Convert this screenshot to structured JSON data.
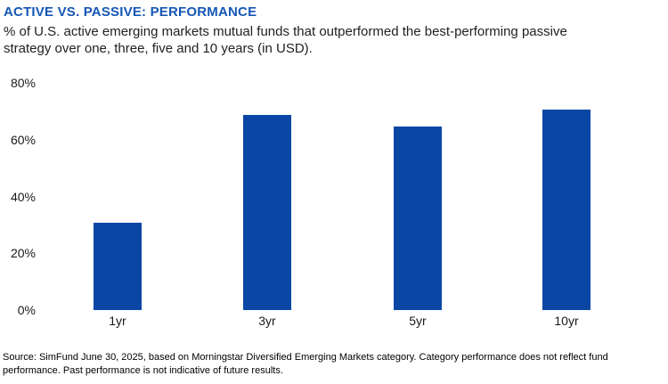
{
  "header": {
    "title": "ACTIVE VS. PASSIVE: PERFORMANCE",
    "subtitle_line1": "% of U.S. active emerging markets mutual funds that outperformed the best-performing passive",
    "subtitle_line2": "strategy over one, three, five and 10 years (in USD).",
    "title_color": "#1557B5"
  },
  "chart_data": {
    "type": "bar",
    "title": "ACTIVE VS. PASSIVE: PERFORMANCE",
    "categories": [
      "1yr",
      "3yr",
      "5yr",
      "10yr"
    ],
    "values": [
      31,
      69,
      65,
      71
    ],
    "xlabel": "",
    "ylabel": "",
    "ylim": [
      0,
      80
    ],
    "ytick_labels_top_to_bottom": [
      "80%",
      "60%",
      "40%",
      "20%",
      "0%"
    ],
    "grid": false,
    "legend": false,
    "bar_color": "#0A47A5"
  },
  "footer": {
    "line1": "Source: SimFund June 30, 2025, based on Morningstar Diversified Emerging Markets category. Category performance does not reflect fund",
    "line2": "performance. Past performance is not indicative of future results."
  }
}
